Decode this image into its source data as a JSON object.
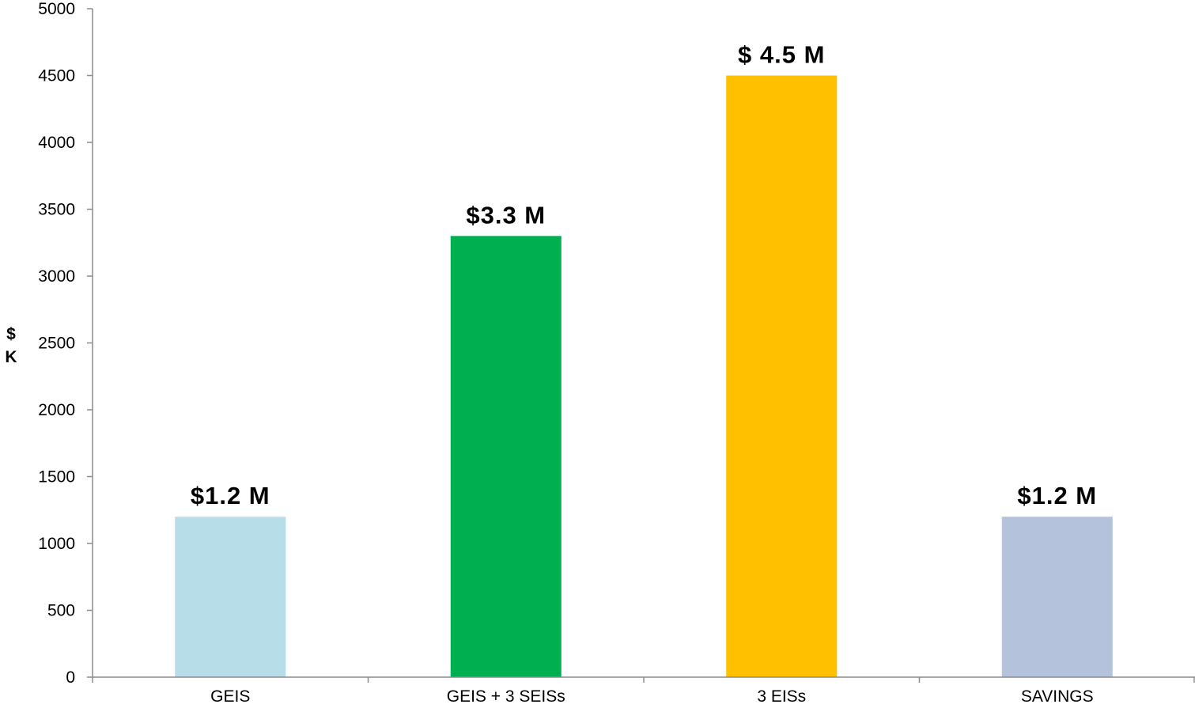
{
  "chart_data": {
    "type": "bar",
    "categories": [
      "GEIS",
      "GEIS + 3 SEISs",
      "3 EISs",
      "SAVINGS"
    ],
    "values": [
      1200,
      3300,
      4500,
      1200
    ],
    "data_labels": [
      "$1.2 M",
      "$3.3 M",
      "$ 4.5 M",
      "$1.2 M"
    ],
    "colors": [
      "#b7dde8",
      "#00b050",
      "#ffc000",
      "#b4c2dc"
    ],
    "ylabel_lines": [
      "$",
      "K"
    ],
    "ylim": [
      0,
      5000
    ],
    "yticks": [
      0,
      500,
      1000,
      1500,
      2000,
      2500,
      3000,
      3500,
      4000,
      4500,
      5000
    ],
    "grid": false,
    "legend": "none"
  }
}
